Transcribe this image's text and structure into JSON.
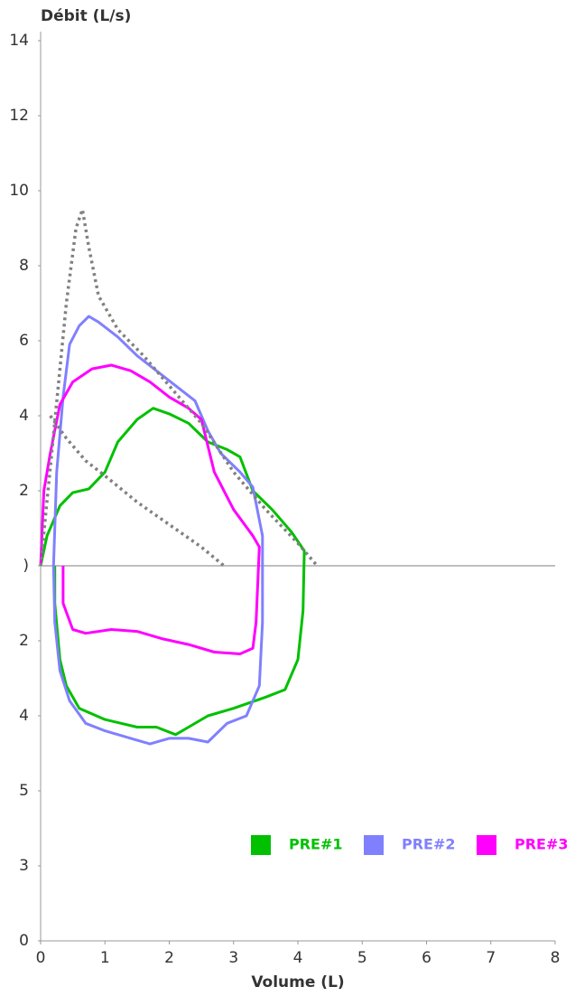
{
  "chart_data": {
    "type": "line",
    "y_label": "Débit (L/s)",
    "x_label": "Volume (L)",
    "xlim": [
      0,
      8
    ],
    "ylim": [
      -10,
      14
    ],
    "xticks": [
      0,
      1,
      2,
      3,
      4,
      5,
      6,
      7,
      8
    ],
    "yticks": [
      {
        "value": -10,
        "label": "0"
      },
      {
        "value": -8,
        "label": "3"
      },
      {
        "value": -6,
        "label": "5"
      },
      {
        "value": -4,
        "label": "4"
      },
      {
        "value": -2,
        "label": "2"
      },
      {
        "value": 0,
        "label": ")"
      },
      2,
      4,
      6,
      8,
      10,
      12,
      14
    ],
    "zero_line": true,
    "series": [
      {
        "name": "PRE#1",
        "color": "#00c000",
        "x": [
          0,
          0.1,
          0.3,
          0.5,
          0.75,
          1.0,
          1.2,
          1.5,
          1.75,
          2.0,
          2.3,
          2.6,
          2.9,
          3.1,
          3.3,
          3.6,
          3.9,
          4.1,
          4.08,
          4.0,
          3.8,
          3.5,
          3.0,
          2.6,
          2.3,
          2.1,
          1.8,
          1.5,
          1.0,
          0.6,
          0.4,
          0.3,
          0.22,
          0.22
        ],
        "values": [
          0,
          0.8,
          1.6,
          1.95,
          2.05,
          2.5,
          3.3,
          3.9,
          4.2,
          4.05,
          3.8,
          3.3,
          3.1,
          2.9,
          2.0,
          1.5,
          0.9,
          0.4,
          -1.2,
          -2.5,
          -3.3,
          -3.5,
          -3.8,
          -4.0,
          -4.3,
          -4.5,
          -4.3,
          -4.3,
          -4.1,
          -3.8,
          -3.2,
          -2.5,
          -1.0,
          0
        ]
      },
      {
        "name": "PRE#2",
        "color": "#8080ff",
        "x": [
          0.2,
          0.25,
          0.35,
          0.45,
          0.6,
          0.75,
          0.9,
          1.2,
          1.5,
          1.8,
          2.1,
          2.4,
          2.6,
          2.8,
          3.1,
          3.3,
          3.45,
          3.45,
          3.4,
          3.2,
          2.9,
          2.6,
          2.3,
          2.0,
          1.7,
          1.4,
          1.0,
          0.7,
          0.45,
          0.3,
          0.22,
          0.2
        ],
        "values": [
          0,
          2.5,
          4.5,
          5.9,
          6.4,
          6.65,
          6.5,
          6.1,
          5.6,
          5.2,
          4.8,
          4.4,
          3.6,
          3.0,
          2.5,
          2.1,
          0.8,
          -1.5,
          -3.2,
          -4.0,
          -4.2,
          -4.7,
          -4.6,
          -4.6,
          -4.75,
          -4.6,
          -4.4,
          -4.2,
          -3.6,
          -2.8,
          -1.5,
          0
        ]
      },
      {
        "name": "PRE#3",
        "color": "#ff00ff",
        "x": [
          0,
          0.05,
          0.15,
          0.3,
          0.5,
          0.8,
          1.1,
          1.4,
          1.7,
          2.0,
          2.3,
          2.5,
          2.7,
          3.0,
          3.3,
          3.4,
          3.35,
          3.3,
          3.1,
          2.7,
          2.3,
          1.9,
          1.5,
          1.1,
          0.7,
          0.5,
          0.35,
          0.35
        ],
        "values": [
          0,
          2.0,
          3.0,
          4.3,
          4.9,
          5.25,
          5.35,
          5.2,
          4.9,
          4.5,
          4.2,
          3.9,
          2.5,
          1.5,
          0.8,
          0.5,
          -1.5,
          -2.2,
          -2.35,
          -2.3,
          -2.1,
          -1.95,
          -1.75,
          -1.7,
          -1.8,
          -1.7,
          -1.0,
          0
        ]
      },
      {
        "color": "#808080",
        "dashed": true,
        "x": [
          0,
          0.2,
          0.4,
          0.55,
          0.65,
          0.75,
          0.9,
          1.2,
          1.6,
          2.0,
          2.5,
          3.0,
          3.5,
          4.0,
          4.3
        ],
        "values": [
          0,
          3.5,
          7.0,
          9.0,
          9.5,
          8.5,
          7.2,
          6.3,
          5.6,
          4.8,
          3.8,
          2.5,
          1.5,
          0.6,
          0
        ]
      },
      {
        "color": "#808080",
        "dashed": true,
        "x": [
          0.15,
          0.4,
          0.7,
          1.0,
          1.5,
          2.0,
          2.5,
          2.85
        ],
        "values": [
          4.0,
          3.4,
          2.8,
          2.4,
          1.7,
          1.1,
          0.5,
          0
        ]
      }
    ]
  }
}
